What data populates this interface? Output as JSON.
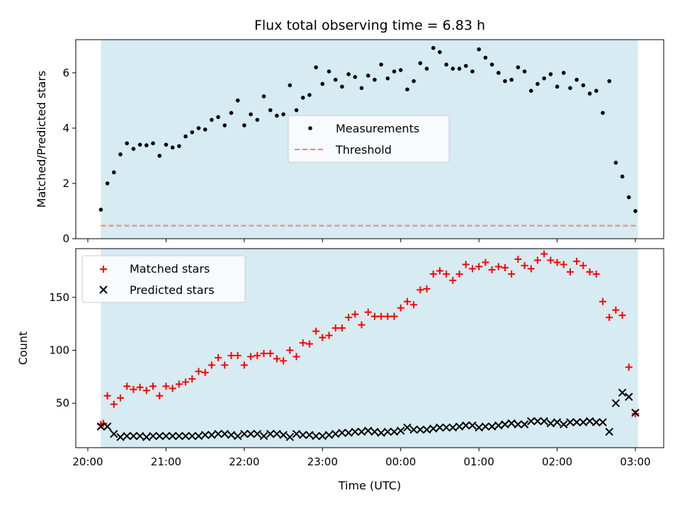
{
  "chart_data": [
    {
      "type": "scatter",
      "title": "Flux total observing time = 6.83 h",
      "ylabel": "Matched/Predicted stars",
      "ylim": [
        0,
        7.2
      ],
      "yticks": [
        "0",
        "2",
        "4",
        "6"
      ],
      "xlim": [
        "20:00",
        "03:00"
      ],
      "observing_window": [
        "20:10",
        "03:02"
      ],
      "shade_color": "#add8e6",
      "legend_position": "center",
      "series": [
        {
          "name": "Measurements",
          "marker": "dot",
          "color": "#000000",
          "points": [
            [
              "20:10",
              1.05
            ],
            [
              "20:15",
              2.0
            ],
            [
              "20:20",
              2.4
            ],
            [
              "20:25",
              3.05
            ],
            [
              "20:30",
              3.45
            ],
            [
              "20:35",
              3.25
            ],
            [
              "20:40",
              3.4
            ],
            [
              "20:45",
              3.38
            ],
            [
              "20:50",
              3.45
            ],
            [
              "20:55",
              3.0
            ],
            [
              "21:00",
              3.4
            ],
            [
              "21:05",
              3.3
            ],
            [
              "21:10",
              3.35
            ],
            [
              "21:15",
              3.7
            ],
            [
              "21:20",
              3.85
            ],
            [
              "21:25",
              4.0
            ],
            [
              "21:30",
              3.95
            ],
            [
              "21:35",
              4.3
            ],
            [
              "21:40",
              4.4
            ],
            [
              "21:45",
              4.1
            ],
            [
              "21:50",
              4.55
            ],
            [
              "21:55",
              5.0
            ],
            [
              "22:00",
              4.1
            ],
            [
              "22:05",
              4.5
            ],
            [
              "22:10",
              4.3
            ],
            [
              "22:15",
              5.15
            ],
            [
              "22:20",
              4.65
            ],
            [
              "22:25",
              4.45
            ],
            [
              "22:30",
              4.5
            ],
            [
              "22:35",
              5.55
            ],
            [
              "22:40",
              4.65
            ],
            [
              "22:45",
              5.1
            ],
            [
              "22:50",
              5.2
            ],
            [
              "22:55",
              6.2
            ],
            [
              "23:00",
              5.6
            ],
            [
              "23:05",
              6.05
            ],
            [
              "23:10",
              5.75
            ],
            [
              "23:15",
              5.5
            ],
            [
              "23:20",
              5.95
            ],
            [
              "23:25",
              5.85
            ],
            [
              "23:30",
              5.45
            ],
            [
              "23:35",
              5.9
            ],
            [
              "23:40",
              5.75
            ],
            [
              "23:45",
              6.3
            ],
            [
              "23:50",
              5.8
            ],
            [
              "23:55",
              6.05
            ],
            [
              "00:00",
              6.1
            ],
            [
              "00:05",
              5.4
            ],
            [
              "00:10",
              5.7
            ],
            [
              "00:15",
              6.35
            ],
            [
              "00:20",
              6.15
            ],
            [
              "00:25",
              6.9
            ],
            [
              "00:30",
              6.75
            ],
            [
              "00:35",
              6.3
            ],
            [
              "00:40",
              6.15
            ],
            [
              "00:45",
              6.15
            ],
            [
              "00:50",
              6.25
            ],
            [
              "00:55",
              6.05
            ],
            [
              "01:00",
              6.85
            ],
            [
              "01:05",
              6.55
            ],
            [
              "01:10",
              6.3
            ],
            [
              "01:15",
              6.0
            ],
            [
              "01:20",
              5.7
            ],
            [
              "01:25",
              5.75
            ],
            [
              "01:30",
              6.2
            ],
            [
              "01:35",
              6.05
            ],
            [
              "01:40",
              5.35
            ],
            [
              "01:45",
              5.6
            ],
            [
              "01:50",
              5.8
            ],
            [
              "01:55",
              5.95
            ],
            [
              "02:00",
              5.5
            ],
            [
              "02:05",
              6.0
            ],
            [
              "02:10",
              5.45
            ],
            [
              "02:15",
              5.75
            ],
            [
              "02:20",
              5.55
            ],
            [
              "02:25",
              5.25
            ],
            [
              "02:30",
              5.35
            ],
            [
              "02:35",
              4.55
            ],
            [
              "02:40",
              5.7
            ],
            [
              "02:45",
              2.75
            ],
            [
              "02:50",
              2.25
            ],
            [
              "02:55",
              1.5
            ],
            [
              "03:00",
              1.0
            ]
          ]
        },
        {
          "name": "Threshold",
          "marker": "dashed-line",
          "color": "#f08080",
          "value": 0.47
        }
      ]
    },
    {
      "type": "scatter",
      "xlabel": "Time (UTC)",
      "ylabel": "Count",
      "ylim": [
        8,
        196
      ],
      "yticks": [
        "50",
        "100",
        "150"
      ],
      "xticks": [
        "20:00",
        "21:00",
        "22:00",
        "23:00",
        "00:00",
        "01:00",
        "02:00",
        "03:00"
      ],
      "xlim": [
        "20:00",
        "03:00"
      ],
      "observing_window": [
        "20:10",
        "03:02"
      ],
      "shade_color": "#add8e6",
      "legend_position": "top-left",
      "series": [
        {
          "name": "Matched stars",
          "marker": "plus",
          "color": "#ff0000",
          "points": [
            [
              "20:10",
              30
            ],
            [
              "20:12",
              31
            ],
            [
              "20:15",
              57
            ],
            [
              "20:20",
              49
            ],
            [
              "20:25",
              55
            ],
            [
              "20:30",
              66
            ],
            [
              "20:35",
              63
            ],
            [
              "20:40",
              65
            ],
            [
              "20:45",
              62
            ],
            [
              "20:50",
              66
            ],
            [
              "20:55",
              57
            ],
            [
              "21:00",
              66
            ],
            [
              "21:05",
              64
            ],
            [
              "21:10",
              68
            ],
            [
              "21:15",
              70
            ],
            [
              "21:20",
              73
            ],
            [
              "21:25",
              80
            ],
            [
              "21:30",
              79
            ],
            [
              "21:35",
              86
            ],
            [
              "21:40",
              93
            ],
            [
              "21:45",
              86
            ],
            [
              "21:50",
              95
            ],
            [
              "21:55",
              95
            ],
            [
              "22:00",
              86
            ],
            [
              "22:05",
              94
            ],
            [
              "22:10",
              95
            ],
            [
              "22:15",
              97
            ],
            [
              "22:20",
              97
            ],
            [
              "22:25",
              92
            ],
            [
              "22:30",
              90
            ],
            [
              "22:35",
              100
            ],
            [
              "22:40",
              94
            ],
            [
              "22:45",
              107
            ],
            [
              "22:50",
              106
            ],
            [
              "22:55",
              118
            ],
            [
              "23:00",
              112
            ],
            [
              "23:05",
              114
            ],
            [
              "23:10",
              121
            ],
            [
              "23:15",
              121
            ],
            [
              "23:20",
              131
            ],
            [
              "23:25",
              134
            ],
            [
              "23:30",
              124
            ],
            [
              "23:35",
              136
            ],
            [
              "23:40",
              132
            ],
            [
              "23:45",
              132
            ],
            [
              "23:50",
              132
            ],
            [
              "23:55",
              132
            ],
            [
              "00:00",
              140
            ],
            [
              "00:05",
              146
            ],
            [
              "00:10",
              143
            ],
            [
              "00:15",
              157
            ],
            [
              "00:20",
              158
            ],
            [
              "00:25",
              172
            ],
            [
              "00:30",
              175
            ],
            [
              "00:35",
              172
            ],
            [
              "00:40",
              166
            ],
            [
              "00:45",
              172
            ],
            [
              "00:50",
              181
            ],
            [
              "00:55",
              177
            ],
            [
              "01:00",
              179
            ],
            [
              "01:05",
              183
            ],
            [
              "01:10",
              176
            ],
            [
              "01:15",
              179
            ],
            [
              "01:20",
              178
            ],
            [
              "01:25",
              172
            ],
            [
              "01:30",
              186
            ],
            [
              "01:35",
              180
            ],
            [
              "01:40",
              177
            ],
            [
              "01:45",
              185
            ],
            [
              "01:50",
              191
            ],
            [
              "01:55",
              185
            ],
            [
              "02:00",
              183
            ],
            [
              "02:05",
              181
            ],
            [
              "02:10",
              174
            ],
            [
              "02:15",
              184
            ],
            [
              "02:20",
              180
            ],
            [
              "02:25",
              174
            ],
            [
              "02:30",
              172
            ],
            [
              "02:35",
              146
            ],
            [
              "02:40",
              131
            ],
            [
              "02:45",
              138
            ],
            [
              "02:50",
              133
            ],
            [
              "02:55",
              84
            ],
            [
              "03:00",
              40
            ]
          ]
        },
        {
          "name": "Predicted stars",
          "marker": "x",
          "color": "#000000",
          "points": [
            [
              "20:10",
              28
            ],
            [
              "20:15",
              28
            ],
            [
              "20:20",
              21
            ],
            [
              "20:25",
              18
            ],
            [
              "20:30",
              19
            ],
            [
              "20:35",
              19
            ],
            [
              "20:40",
              19
            ],
            [
              "20:45",
              18
            ],
            [
              "20:50",
              19
            ],
            [
              "20:55",
              19
            ],
            [
              "21:00",
              19
            ],
            [
              "21:05",
              19
            ],
            [
              "21:10",
              19
            ],
            [
              "21:15",
              19
            ],
            [
              "21:20",
              19
            ],
            [
              "21:25",
              19
            ],
            [
              "21:30",
              20
            ],
            [
              "21:35",
              20
            ],
            [
              "21:40",
              21
            ],
            [
              "21:45",
              21
            ],
            [
              "21:50",
              20
            ],
            [
              "21:55",
              19
            ],
            [
              "22:00",
              21
            ],
            [
              "22:05",
              21
            ],
            [
              "22:10",
              21
            ],
            [
              "22:15",
              19
            ],
            [
              "22:20",
              21
            ],
            [
              "22:25",
              21
            ],
            [
              "22:30",
              20
            ],
            [
              "22:35",
              18
            ],
            [
              "22:40",
              21
            ],
            [
              "22:45",
              20
            ],
            [
              "22:50",
              20
            ],
            [
              "22:55",
              19
            ],
            [
              "23:00",
              19
            ],
            [
              "23:05",
              20
            ],
            [
              "23:10",
              21
            ],
            [
              "23:15",
              22
            ],
            [
              "23:20",
              22
            ],
            [
              "23:25",
              23
            ],
            [
              "23:30",
              23
            ],
            [
              "23:35",
              24
            ],
            [
              "23:40",
              23
            ],
            [
              "23:45",
              22
            ],
            [
              "23:50",
              23
            ],
            [
              "23:55",
              23
            ],
            [
              "00:00",
              24
            ],
            [
              "00:05",
              27
            ],
            [
              "00:10",
              25
            ],
            [
              "00:15",
              25
            ],
            [
              "00:20",
              25
            ],
            [
              "00:25",
              26
            ],
            [
              "00:30",
              27
            ],
            [
              "00:35",
              27
            ],
            [
              "00:40",
              27
            ],
            [
              "00:45",
              28
            ],
            [
              "00:50",
              29
            ],
            [
              "00:55",
              29
            ],
            [
              "01:00",
              27
            ],
            [
              "01:05",
              28
            ],
            [
              "01:10",
              28
            ],
            [
              "01:15",
              29
            ],
            [
              "01:20",
              30
            ],
            [
              "01:25",
              31
            ],
            [
              "01:30",
              30
            ],
            [
              "01:35",
              30
            ],
            [
              "01:40",
              33
            ],
            [
              "01:45",
              33
            ],
            [
              "01:50",
              33
            ],
            [
              "01:55",
              31
            ],
            [
              "02:00",
              32
            ],
            [
              "02:05",
              30
            ],
            [
              "02:10",
              32
            ],
            [
              "02:15",
              32
            ],
            [
              "02:20",
              32
            ],
            [
              "02:25",
              33
            ],
            [
              "02:30",
              32
            ],
            [
              "02:35",
              32
            ],
            [
              "02:40",
              23
            ],
            [
              "02:45",
              50
            ],
            [
              "02:50",
              60
            ],
            [
              "02:55",
              56
            ],
            [
              "03:00",
              41
            ]
          ]
        }
      ]
    }
  ]
}
